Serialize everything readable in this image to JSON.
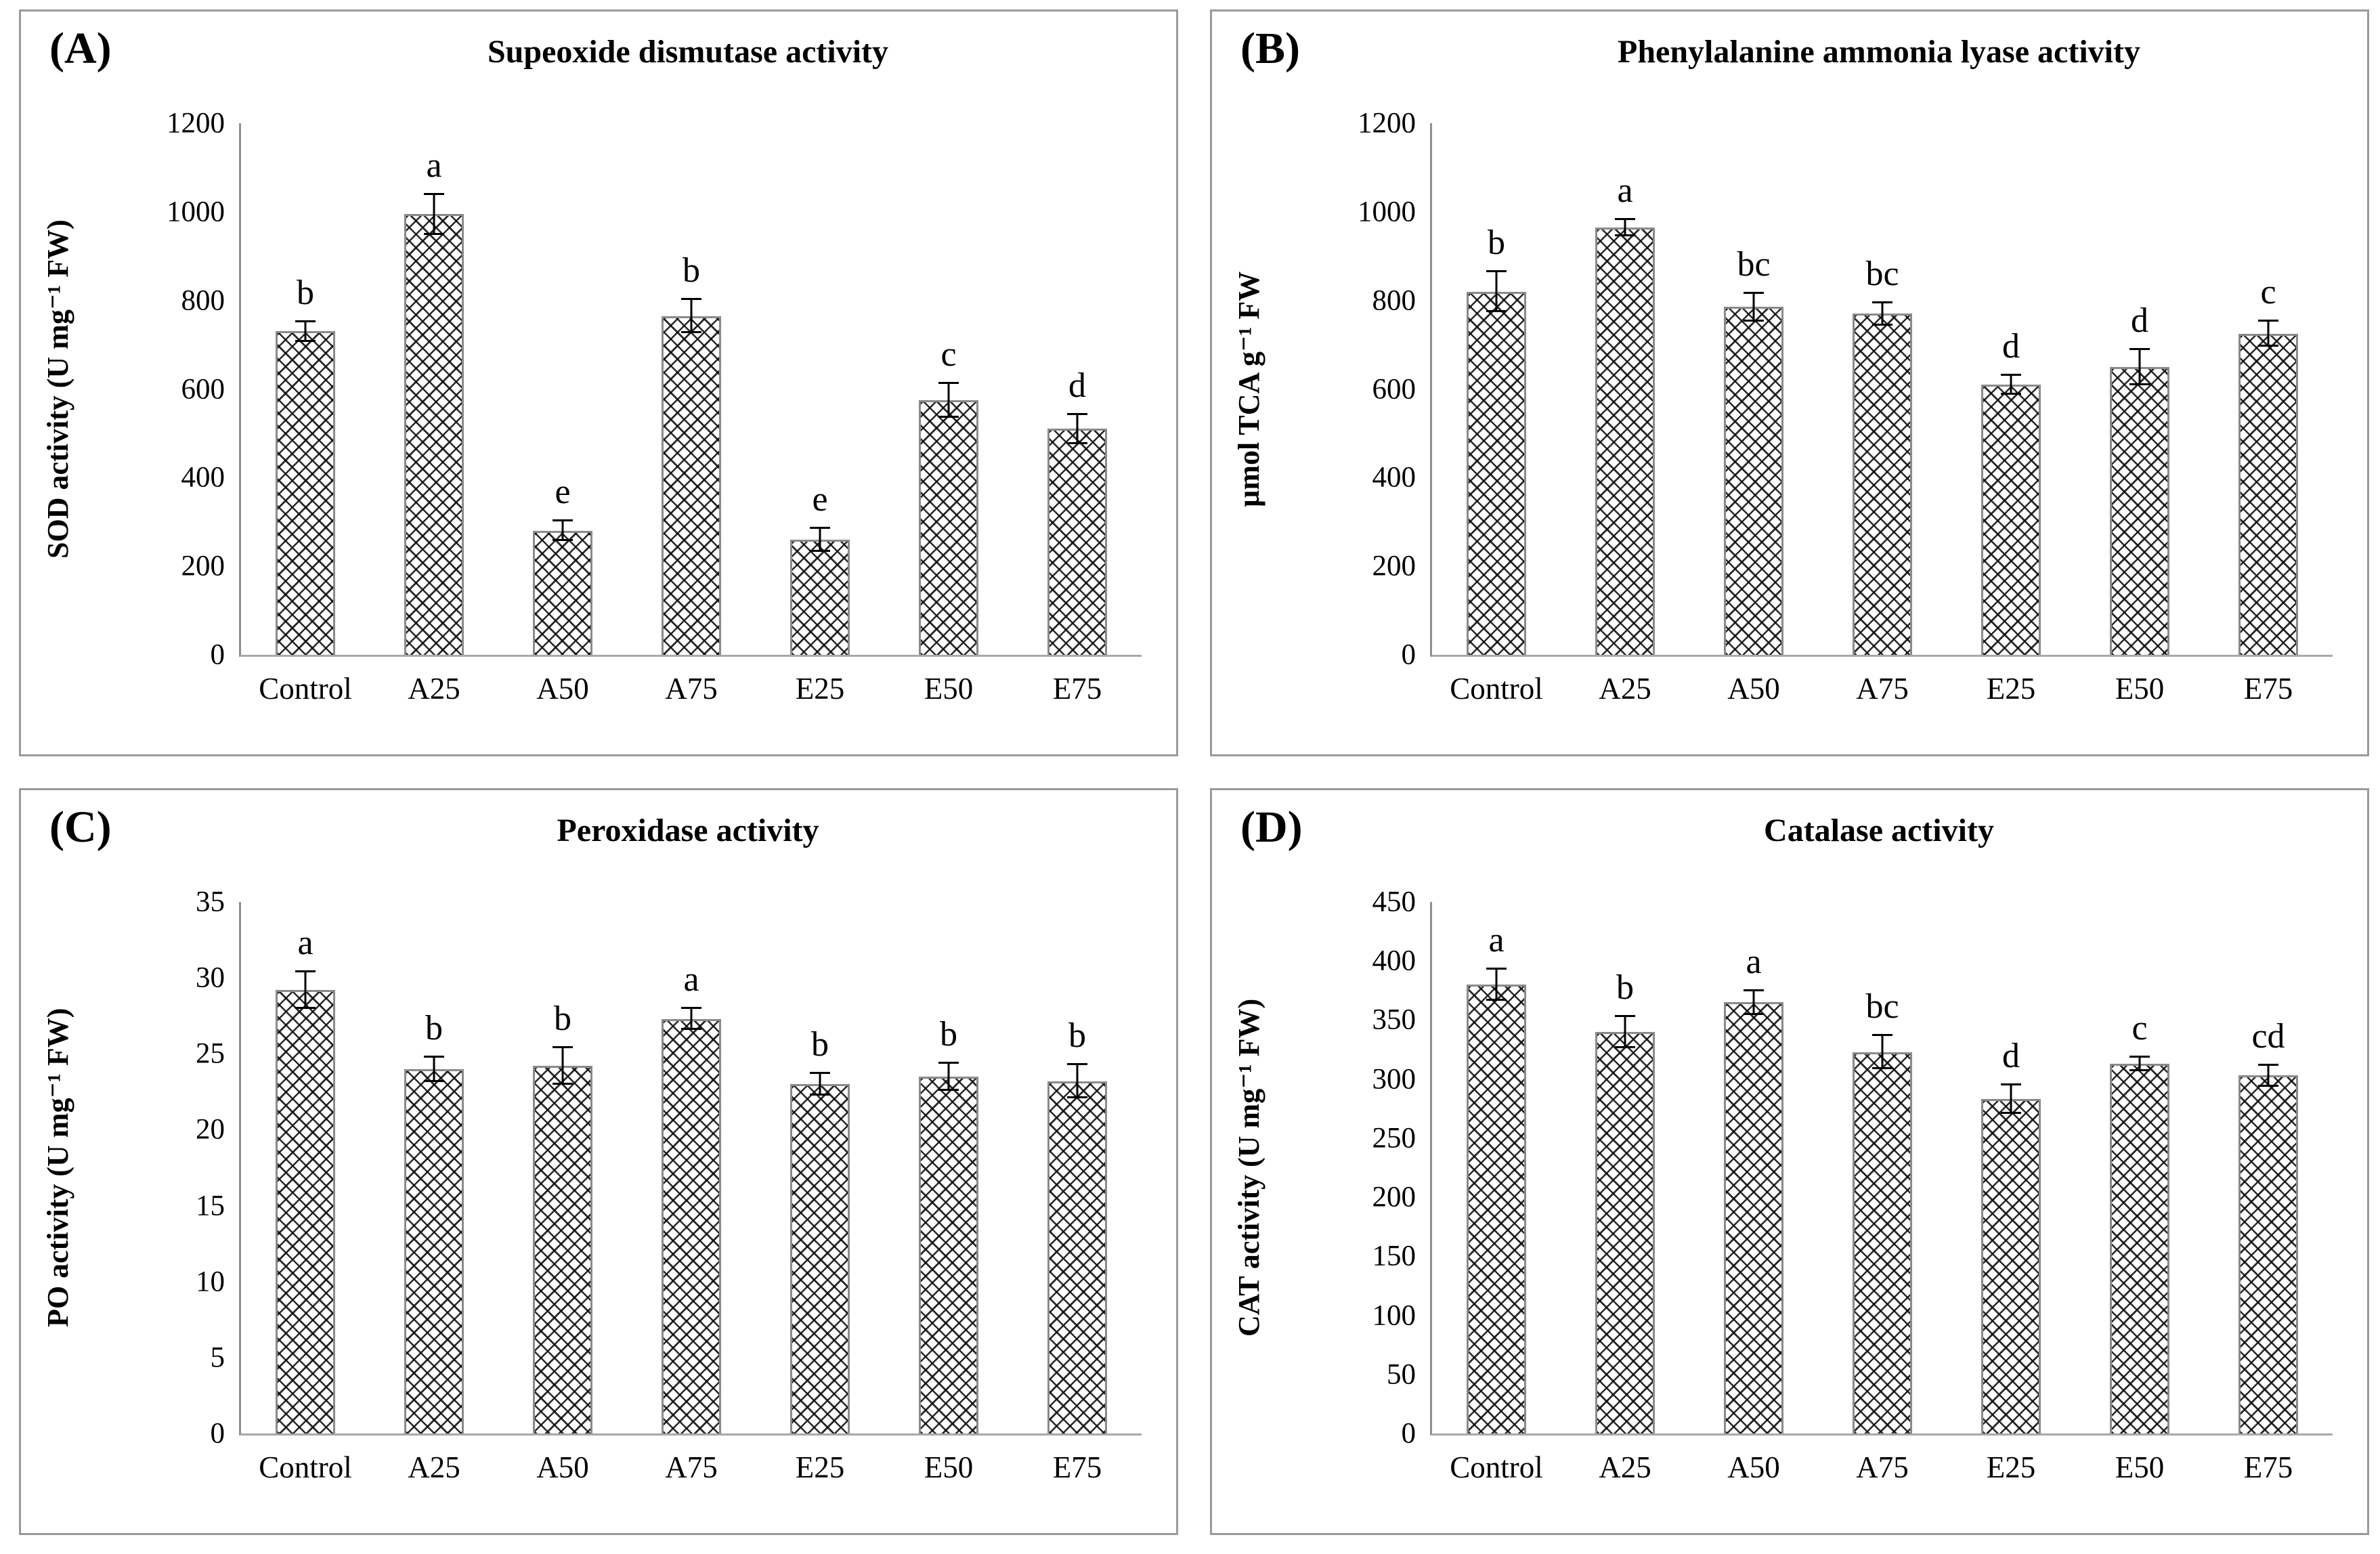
{
  "figure": {
    "background": "#ffffff",
    "panel_border_color": "#9a9a9a",
    "axis_color": "#8f8f8f",
    "bar_border_color": "#8a8a8a",
    "bar_fill": "#ffffff",
    "hatch_color": "#0a0a0a",
    "error_bar_color": "#000000",
    "bar_pattern": "diagonal-crosshatch"
  },
  "chart_data": [
    {
      "type": "bar",
      "panel_label": "(A)",
      "title": "Supeoxide dismutase activity",
      "ylabel": "SOD activity (U mg⁻¹ FW)",
      "xlabel": "",
      "ylim": [
        0,
        1200
      ],
      "yticks": [
        0,
        200,
        400,
        600,
        800,
        1000,
        1200
      ],
      "grid": false,
      "legend": "none",
      "categories": [
        "Control",
        "A25",
        "A50",
        "A75",
        "E25",
        "E50",
        "E75"
      ],
      "values": [
        730,
        995,
        280,
        765,
        260,
        575,
        510
      ],
      "errors": [
        22,
        45,
        22,
        38,
        26,
        38,
        33
      ],
      "sig_letters": [
        "b",
        "a",
        "e",
        "b",
        "e",
        "c",
        "d"
      ]
    },
    {
      "type": "bar",
      "panel_label": "(B)",
      "title": "Phenylalanine ammonia lyase activity",
      "ylabel": "µmol TCA g⁻¹ FW",
      "xlabel": "",
      "ylim": [
        0,
        1200
      ],
      "yticks": [
        0,
        200,
        400,
        600,
        800,
        1000,
        1200
      ],
      "grid": false,
      "legend": "none",
      "categories": [
        "Control",
        "A25",
        "A50",
        "A75",
        "E25",
        "E50",
        "E75"
      ],
      "values": [
        820,
        965,
        785,
        770,
        610,
        650,
        725
      ],
      "errors": [
        45,
        18,
        32,
        25,
        22,
        40,
        28
      ],
      "sig_letters": [
        "b",
        "a",
        "bc",
        "bc",
        "d",
        "d",
        "c"
      ]
    },
    {
      "type": "bar",
      "panel_label": "(C)",
      "title": "Peroxidase activity",
      "ylabel": "PO activity (U mg⁻¹ FW)",
      "xlabel": "",
      "ylim": [
        0,
        35
      ],
      "yticks": [
        0,
        5,
        10,
        15,
        20,
        25,
        30,
        35
      ],
      "grid": false,
      "legend": "none",
      "categories": [
        "Control",
        "A25",
        "A50",
        "A75",
        "E25",
        "E50",
        "E75"
      ],
      "values": [
        29.2,
        24.0,
        24.2,
        27.3,
        23.0,
        23.5,
        23.2
      ],
      "errors": [
        1.2,
        0.8,
        1.2,
        0.7,
        0.7,
        0.9,
        1.1
      ],
      "sig_letters": [
        "a",
        "b",
        "b",
        "a",
        "b",
        "b",
        "b"
      ]
    },
    {
      "type": "bar",
      "panel_label": "(D)",
      "title": "Catalase activity",
      "ylabel": "CAT activity (U mg⁻¹ FW)",
      "xlabel": "",
      "ylim": [
        0,
        450
      ],
      "yticks": [
        0,
        50,
        100,
        150,
        200,
        250,
        300,
        350,
        400,
        450
      ],
      "grid": false,
      "legend": "none",
      "categories": [
        "Control",
        "A25",
        "A50",
        "A75",
        "E25",
        "E50",
        "E75"
      ],
      "values": [
        380,
        340,
        365,
        323,
        283,
        313,
        303
      ],
      "errors": [
        13,
        13,
        10,
        14,
        12,
        6,
        9
      ],
      "sig_letters": [
        "a",
        "b",
        "a",
        "bc",
        "d",
        "c",
        "cd"
      ]
    }
  ]
}
